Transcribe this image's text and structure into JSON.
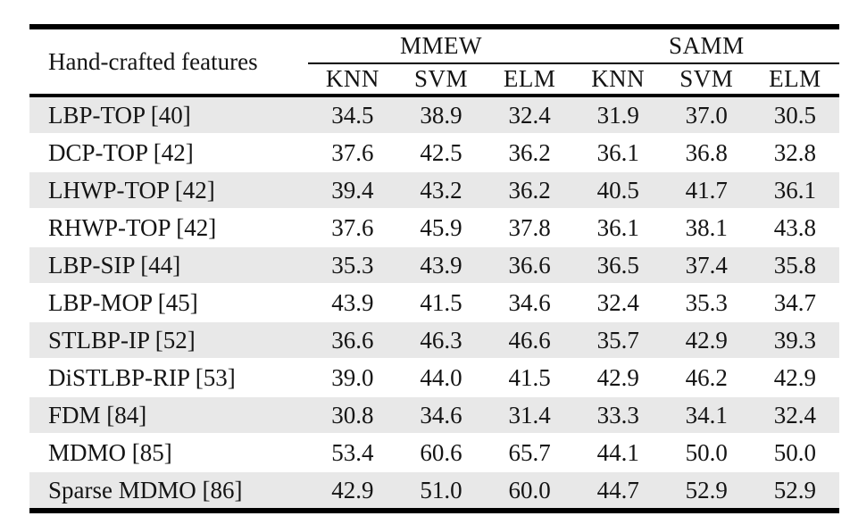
{
  "table": {
    "feature_column_header": "Hand-crafted features",
    "dataset_groups": [
      {
        "label": "MMEW"
      },
      {
        "label": "SAMM"
      }
    ],
    "classifier_headers": [
      "KNN",
      "SVM",
      "ELM",
      "KNN",
      "SVM",
      "ELM"
    ],
    "rows": [
      {
        "feature": "LBP-TOP [40]",
        "values": [
          "34.5",
          "38.9",
          "32.4",
          "31.9",
          "37.0",
          "30.5"
        ]
      },
      {
        "feature": "DCP-TOP [42]",
        "values": [
          "37.6",
          "42.5",
          "36.2",
          "36.1",
          "36.8",
          "32.8"
        ]
      },
      {
        "feature": "LHWP-TOP [42]",
        "values": [
          "39.4",
          "43.2",
          "36.2",
          "40.5",
          "41.7",
          "36.1"
        ]
      },
      {
        "feature": "RHWP-TOP [42]",
        "values": [
          "37.6",
          "45.9",
          "37.8",
          "36.1",
          "38.1",
          "43.8"
        ]
      },
      {
        "feature": "LBP-SIP [44]",
        "values": [
          "35.3",
          "43.9",
          "36.6",
          "36.5",
          "37.4",
          "35.8"
        ]
      },
      {
        "feature": "LBP-MOP [45]",
        "values": [
          "43.9",
          "41.5",
          "34.6",
          "32.4",
          "35.3",
          "34.7"
        ]
      },
      {
        "feature": "STLBP-IP [52]",
        "values": [
          "36.6",
          "46.3",
          "46.6",
          "35.7",
          "42.9",
          "39.3"
        ]
      },
      {
        "feature": "DiSTLBP-RIP [53]",
        "values": [
          "39.0",
          "44.0",
          "41.5",
          "42.9",
          "46.2",
          "42.9"
        ]
      },
      {
        "feature": "FDM [84]",
        "values": [
          "30.8",
          "34.6",
          "31.4",
          "33.3",
          "34.1",
          "32.4"
        ]
      },
      {
        "feature": "MDMO [85]",
        "values": [
          "53.4",
          "60.6",
          "65.7",
          "44.1",
          "50.0",
          "50.0"
        ]
      },
      {
        "feature": "Sparse MDMO [86]",
        "values": [
          "42.9",
          "51.0",
          "60.0",
          "44.7",
          "52.9",
          "52.9"
        ]
      }
    ],
    "colors": {
      "stripe_gray": "#e8e8e8",
      "rule_black": "#000000",
      "text": "#141414",
      "background": "#ffffff"
    }
  }
}
